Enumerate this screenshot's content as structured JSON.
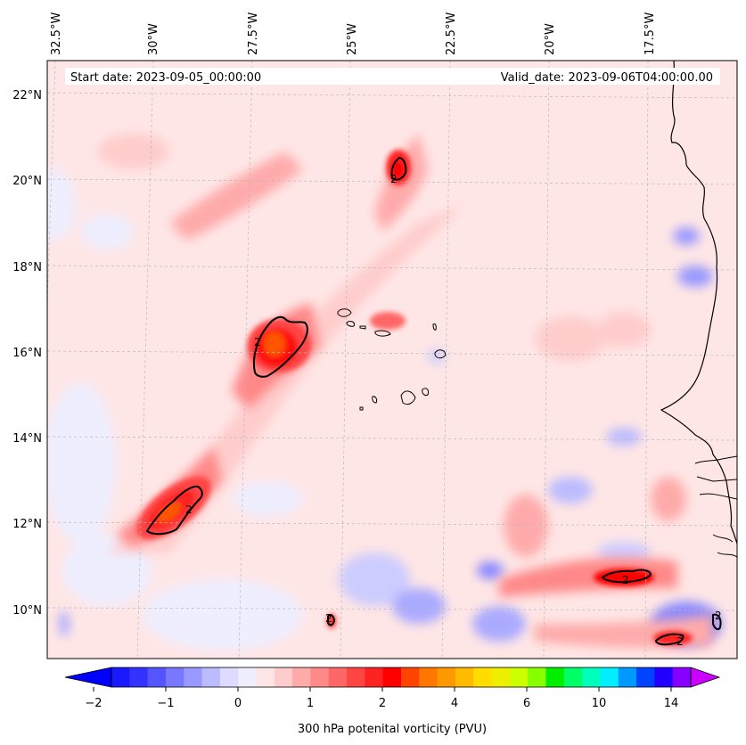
{
  "map": {
    "start_date": "Start date: 2023-09-05_00:00:00",
    "valid_date": "Valid_date: 2023-09-06T04:00:00.00",
    "lon_labels": [
      "32.5°W",
      "30°W",
      "27.5°W",
      "25°W",
      "22.5°W",
      "20°W",
      "17.5°W"
    ],
    "lat_labels": [
      "22°N",
      "20°N",
      "18°N",
      "16°N",
      "14°N",
      "12°N",
      "10°N"
    ],
    "contour_labels": [
      "2",
      "2",
      "2",
      "2",
      "2",
      "2",
      "2"
    ]
  },
  "colorbar": {
    "label": "300 hPa potenital vorticity (PVU)",
    "ticks": [
      "-2",
      "-1",
      "0",
      "1",
      "2",
      "4",
      "6",
      "10",
      "14"
    ],
    "colors": [
      "#1a1aff",
      "#3333ff",
      "#5555ff",
      "#7777ff",
      "#9999ff",
      "#bbbbff",
      "#dddcff",
      "#eeeeff",
      "#ffe6e6",
      "#ffcccc",
      "#ffaaaa",
      "#ff8888",
      "#ff6666",
      "#ff4444",
      "#ff2222",
      "#ff0000",
      "#ff4400",
      "#ff7700",
      "#ff9900",
      "#ffbb00",
      "#ffdd00",
      "#eeee00",
      "#ccff00",
      "#88ff00",
      "#00ee00",
      "#00ff66",
      "#00ffbb",
      "#00eeff",
      "#0099ff",
      "#0044ff",
      "#2200ff",
      "#8800ff"
    ]
  },
  "colors": {
    "background": "#ffe6e6",
    "coast": "#000000"
  }
}
